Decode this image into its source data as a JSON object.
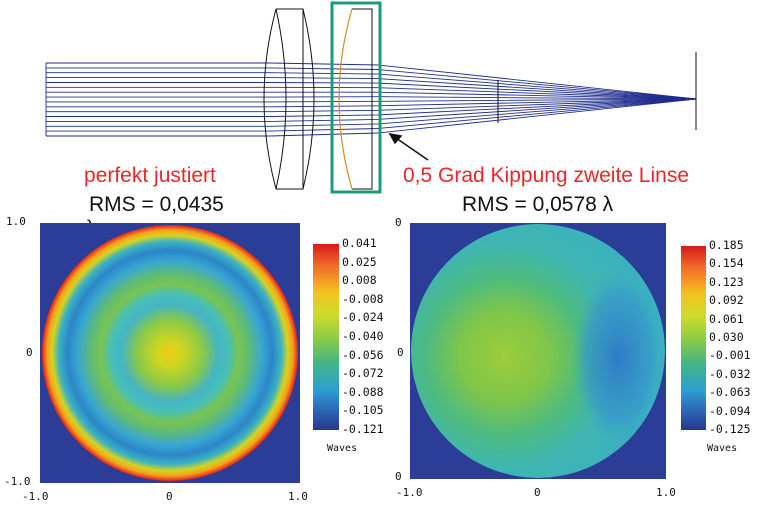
{
  "lens_diagram": {
    "arrow_target": "second-lens"
  },
  "left_panel": {
    "heading": "perfekt justiert",
    "rms_text": "RMS = 0,0435",
    "lambda_symbol": "λ",
    "x_ticks": [
      "-1.0",
      "0",
      "1.0"
    ],
    "y_ticks": [
      "1.0",
      "0",
      "-1.0"
    ],
    "colorbar_ticks": [
      "0.041",
      "0.025",
      "0.008",
      "-0.008",
      "-0.024",
      "-0.040",
      "-0.056",
      "-0.072",
      "-0.088",
      "-0.105",
      "-0.121"
    ],
    "colorbar_units": "Waves"
  },
  "right_panel": {
    "heading": "0,5 Grad Kippung zweite Linse",
    "rms_text": "RMS = 0,0578 λ",
    "x_ticks": [
      "-1.0",
      "0",
      "1.0"
    ],
    "y_ticks": [
      "0",
      "0",
      "0"
    ],
    "colorbar_ticks": [
      "0.185",
      "0.154",
      "0.123",
      "0.092",
      "0.061",
      "0.030",
      "-0.001",
      "-0.032",
      "-0.063",
      "-0.094",
      "-0.125"
    ],
    "colorbar_units": "Waves"
  },
  "colors": {
    "ray": "#1f2d8f",
    "highlight_box": "#1a9b7c",
    "second_lens": "#d98a1a",
    "label_red": "#e8262b",
    "map_background": "#2c3d97"
  }
}
